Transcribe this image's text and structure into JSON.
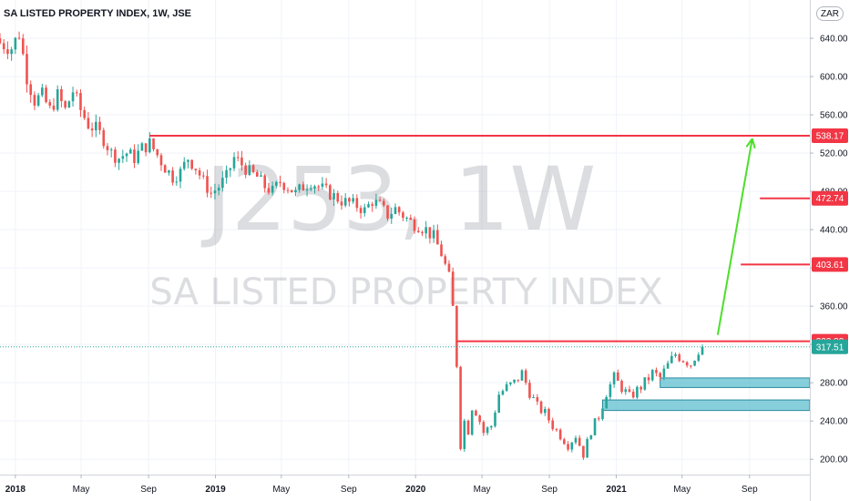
{
  "header": {
    "title": "SA LISTED PROPERTY INDEX, 1W, JSE",
    "currency_button": "ZAR"
  },
  "watermark": {
    "symbol": "J253, 1W",
    "name": "SA LISTED PROPERTY INDEX"
  },
  "colors": {
    "up": "#26a69a",
    "down": "#ef5350",
    "level_line": "#f23645",
    "projection_arrow": "#4cdf2a",
    "zone_fill": "#5fbfcf",
    "last_price": "#26a69a"
  },
  "chart_data": {
    "type": "candlestick",
    "symbol": "J253",
    "interval": "1W",
    "exchange": "JSE",
    "currency": "ZAR",
    "grid": true,
    "y_axis": {
      "ylim": [
        184,
        680
      ],
      "ticks": [
        "200.00",
        "240.00",
        "280.00",
        "320.00",
        "360.00",
        "400.00",
        "440.00",
        "480.00",
        "520.00",
        "560.00",
        "600.00",
        "640.00"
      ]
    },
    "x_axis": {
      "range": [
        "2017-12-04",
        "2021-12-20"
      ],
      "ticks": [
        {
          "date": "2018-01-01",
          "label": "2018"
        },
        {
          "date": "2018-05-01",
          "label": "May"
        },
        {
          "date": "2018-09-01",
          "label": "Sep"
        },
        {
          "date": "2019-01-01",
          "label": "2019"
        },
        {
          "date": "2019-05-01",
          "label": "May"
        },
        {
          "date": "2019-09-01",
          "label": "Sep"
        },
        {
          "date": "2020-01-01",
          "label": "2020"
        },
        {
          "date": "2020-05-01",
          "label": "May"
        },
        {
          "date": "2020-09-01",
          "label": "Sep"
        },
        {
          "date": "2021-01-01",
          "label": "2021"
        },
        {
          "date": "2021-05-01",
          "label": "May"
        },
        {
          "date": "2021-09-01",
          "label": "Sep"
        }
      ]
    },
    "close_path": [
      [
        "2017-12-04",
        635
      ],
      [
        "2017-12-25",
        630
      ],
      [
        "2018-01-08",
        645
      ],
      [
        "2018-01-22",
        600
      ],
      [
        "2018-02-05",
        575
      ],
      [
        "2018-02-19",
        580
      ],
      [
        "2018-03-05",
        565
      ],
      [
        "2018-03-19",
        580
      ],
      [
        "2018-04-02",
        565
      ],
      [
        "2018-04-16",
        585
      ],
      [
        "2018-04-30",
        565
      ],
      [
        "2018-05-14",
        550
      ],
      [
        "2018-05-28",
        545
      ],
      [
        "2018-06-11",
        535
      ],
      [
        "2018-06-25",
        520
      ],
      [
        "2018-07-09",
        515
      ],
      [
        "2018-07-23",
        520
      ],
      [
        "2018-08-06",
        515
      ],
      [
        "2018-08-20",
        525
      ],
      [
        "2018-09-03",
        530
      ],
      [
        "2018-09-17",
        518
      ],
      [
        "2018-10-01",
        505
      ],
      [
        "2018-10-15",
        495
      ],
      [
        "2018-10-29",
        500
      ],
      [
        "2018-11-12",
        515
      ],
      [
        "2018-11-26",
        505
      ],
      [
        "2018-12-10",
        490
      ],
      [
        "2018-12-24",
        478
      ],
      [
        "2019-01-07",
        485
      ],
      [
        "2019-01-21",
        495
      ],
      [
        "2019-02-04",
        515
      ],
      [
        "2019-02-18",
        508
      ],
      [
        "2019-03-04",
        500
      ],
      [
        "2019-03-18",
        495
      ],
      [
        "2019-04-01",
        485
      ],
      [
        "2019-04-15",
        480
      ],
      [
        "2019-04-29",
        490
      ],
      [
        "2019-05-13",
        485
      ],
      [
        "2019-05-27",
        478
      ],
      [
        "2019-06-10",
        485
      ],
      [
        "2019-06-24",
        490
      ],
      [
        "2019-07-08",
        485
      ],
      [
        "2019-07-22",
        480
      ],
      [
        "2019-08-05",
        475
      ],
      [
        "2019-08-19",
        470
      ],
      [
        "2019-09-02",
        468
      ],
      [
        "2019-09-16",
        465
      ],
      [
        "2019-09-30",
        460
      ],
      [
        "2019-10-14",
        470
      ],
      [
        "2019-10-28",
        465
      ],
      [
        "2019-11-11",
        455
      ],
      [
        "2019-11-25",
        462
      ],
      [
        "2019-12-09",
        455
      ],
      [
        "2019-12-23",
        448
      ],
      [
        "2020-01-06",
        445
      ],
      [
        "2020-01-20",
        440
      ],
      [
        "2020-02-03",
        432
      ],
      [
        "2020-02-17",
        415
      ],
      [
        "2020-03-02",
        390
      ],
      [
        "2020-03-09",
        358
      ],
      [
        "2020-03-16",
        300
      ],
      [
        "2020-03-23",
        215
      ],
      [
        "2020-03-30",
        240
      ],
      [
        "2020-04-06",
        230
      ],
      [
        "2020-04-13",
        255
      ],
      [
        "2020-04-20",
        250
      ],
      [
        "2020-04-27",
        240
      ],
      [
        "2020-05-04",
        228
      ],
      [
        "2020-05-18",
        235
      ],
      [
        "2020-06-01",
        268
      ],
      [
        "2020-06-15",
        275
      ],
      [
        "2020-06-29",
        280
      ],
      [
        "2020-07-13",
        290
      ],
      [
        "2020-07-27",
        270
      ],
      [
        "2020-08-10",
        255
      ],
      [
        "2020-08-24",
        248
      ],
      [
        "2020-09-07",
        235
      ],
      [
        "2020-09-21",
        225
      ],
      [
        "2020-10-05",
        215
      ],
      [
        "2020-10-19",
        225
      ],
      [
        "2020-11-02",
        205
      ],
      [
        "2020-11-16",
        230
      ],
      [
        "2020-11-30",
        245
      ],
      [
        "2020-12-14",
        270
      ],
      [
        "2020-12-28",
        285
      ],
      [
        "2021-01-11",
        275
      ],
      [
        "2021-01-25",
        265
      ],
      [
        "2021-02-08",
        272
      ],
      [
        "2021-02-22",
        280
      ],
      [
        "2021-03-08",
        290
      ],
      [
        "2021-03-22",
        285
      ],
      [
        "2021-04-05",
        298
      ],
      [
        "2021-04-19",
        310
      ],
      [
        "2021-05-03",
        305
      ],
      [
        "2021-05-17",
        300
      ],
      [
        "2021-05-31",
        315
      ],
      [
        "2021-06-07",
        317.51
      ]
    ],
    "last_price": 317.51,
    "price_labels": [
      {
        "label": "538.17",
        "value": 538.17
      },
      {
        "label": "472.74",
        "value": 472.74
      },
      {
        "label": "403.61",
        "value": 403.61
      },
      {
        "label": "323.38",
        "value": 323.38
      },
      {
        "label": "317.51",
        "value": 317.51
      }
    ],
    "drawings": {
      "horizontal_levels": [
        {
          "value": 538.17,
          "from": "2018-09-03",
          "to": "2021-12-20"
        },
        {
          "value": 323.38,
          "from": "2020-03-16",
          "to": "2021-12-20"
        },
        {
          "value": 472.74,
          "from": "2021-09-20",
          "to": "2021-12-20"
        },
        {
          "value": 403.61,
          "from": "2021-08-16",
          "to": "2021-12-20"
        }
      ],
      "arrow": {
        "from": [
          "2021-07-05",
          330
        ],
        "to": [
          "2021-09-06",
          535
        ]
      },
      "zones": [
        {
          "from": "2021-03-22",
          "to": "2021-12-20",
          "low": 275,
          "high": 285
        },
        {
          "from": "2020-12-07",
          "to": "2021-12-20",
          "low": 251,
          "high": 262
        }
      ]
    }
  }
}
